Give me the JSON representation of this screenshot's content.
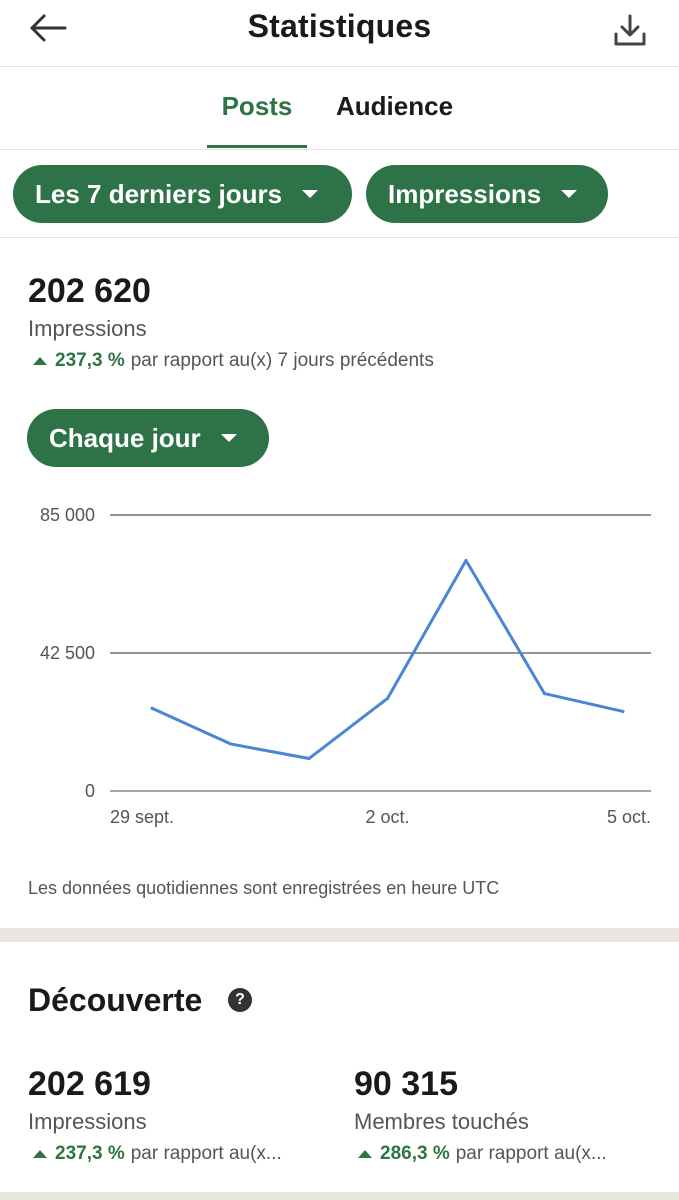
{
  "header": {
    "title": "Statistiques",
    "back_icon": "arrow-left-icon",
    "download_icon": "download-icon"
  },
  "tabs": [
    {
      "label": "Posts",
      "active": true
    },
    {
      "label": "Audience",
      "active": false
    }
  ],
  "filters": {
    "period": "Les 7 derniers jours",
    "metric": "Impressions"
  },
  "summary": {
    "value": "202 620",
    "label": "Impressions",
    "change_pct": "237,3 %",
    "change_text": "par rapport au(x) 7 jours précédents"
  },
  "granularity": "Chaque jour",
  "chart_data": {
    "type": "line",
    "x": [
      "29 sept.",
      "30 sept.",
      "1 oct.",
      "2 oct.",
      "3 oct.",
      "4 oct.",
      "5 oct."
    ],
    "x_tick_labels": [
      "29 sept.",
      "2 oct.",
      "5 oct."
    ],
    "y_tick_labels": [
      "85 000",
      "42 500",
      "0"
    ],
    "series": [
      {
        "values": [
          25500,
          14500,
          10000,
          28500,
          71000,
          30000,
          24500
        ]
      }
    ],
    "ylim": [
      0,
      85000
    ],
    "grid": true,
    "line_color": "#4a86d4"
  },
  "chart_note": "Les données quotidiennes sont enregistrées en heure UTC",
  "discovery": {
    "title": "Découverte",
    "help_icon": "question-mark-icon",
    "help_glyph": "?",
    "metrics": [
      {
        "value": "202 619",
        "label": "Impressions",
        "change_pct": "237,3 %",
        "change_text": "par rapport au(x..."
      },
      {
        "value": "90 315",
        "label": "Membres touchés",
        "change_pct": "286,3 %",
        "change_text": "par rapport au(x..."
      }
    ]
  },
  "colors": {
    "accent": "#2f7444",
    "pill_bg": "#2e7347",
    "line": "#4a86d4"
  }
}
